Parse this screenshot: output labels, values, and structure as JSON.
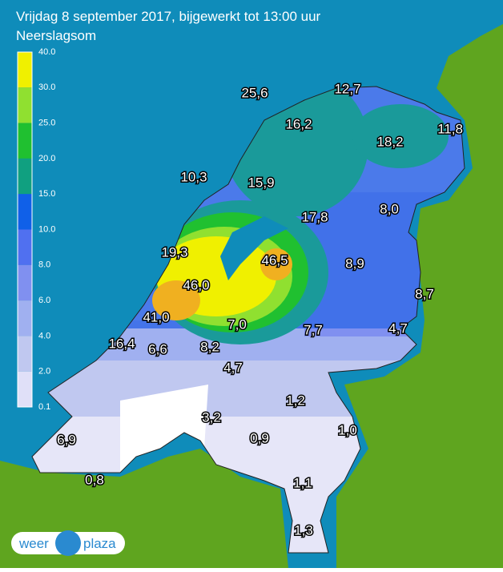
{
  "header": {
    "title": "Vrijdag 8 september 2017, bijgewerkt tot 13:00 uur",
    "subtitle": "Neerslagsom"
  },
  "legend": {
    "levels": [
      "40.0",
      "30.0",
      "25.0",
      "20.0",
      "15.0",
      "10.0",
      "8.0",
      "6.0",
      "4.0",
      "2.0",
      "0.1"
    ]
  },
  "map": {
    "labels": [
      "25,6",
      "12,7",
      "16,2",
      "18,2",
      "11,8",
      "10,3",
      "15,9",
      "17,8",
      "8,0",
      "19,3",
      "46,5",
      "8,9",
      "46,0",
      "8,7",
      "41,0",
      "7,0",
      "7,7",
      "4,7",
      "16,4",
      "6,6",
      "8,2",
      "4,7",
      "1,2",
      "3,2",
      "1,0",
      "6,9",
      "0,9",
      "0,8",
      "1,1",
      "1,3"
    ]
  },
  "logo": {
    "left": "weer",
    "right": "plaza"
  }
}
